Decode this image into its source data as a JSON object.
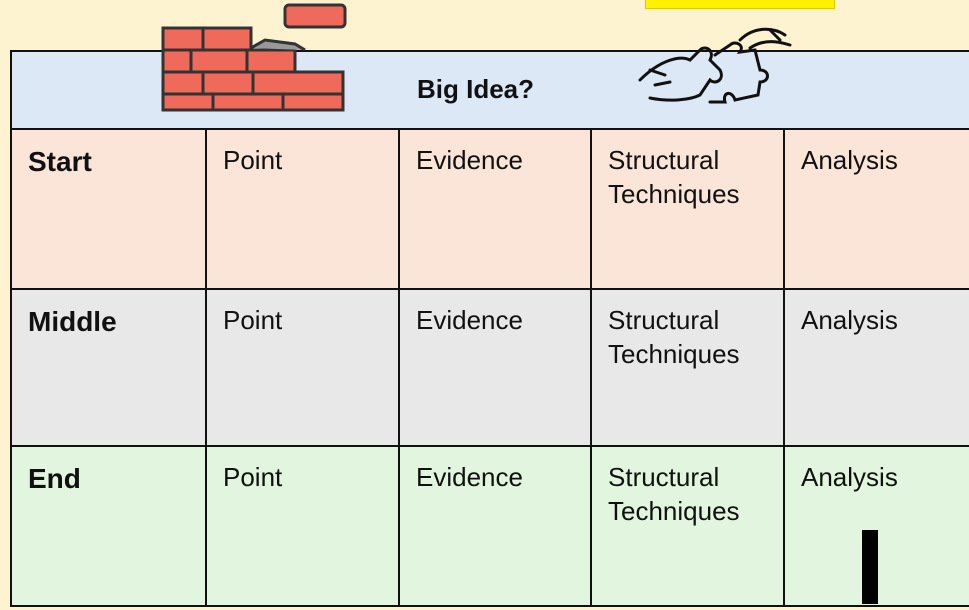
{
  "header": {
    "title": "Big Idea?"
  },
  "table": {
    "rows": [
      [
        "Start",
        "Point",
        "Evidence",
        "Structural Techniques",
        "Analysis"
      ],
      [
        "Middle",
        "Point",
        "Evidence",
        "Structural Techniques",
        "Analysis"
      ],
      [
        "End",
        "Point",
        "Evidence",
        "Structural Techniques",
        "Analysis"
      ]
    ]
  }
}
